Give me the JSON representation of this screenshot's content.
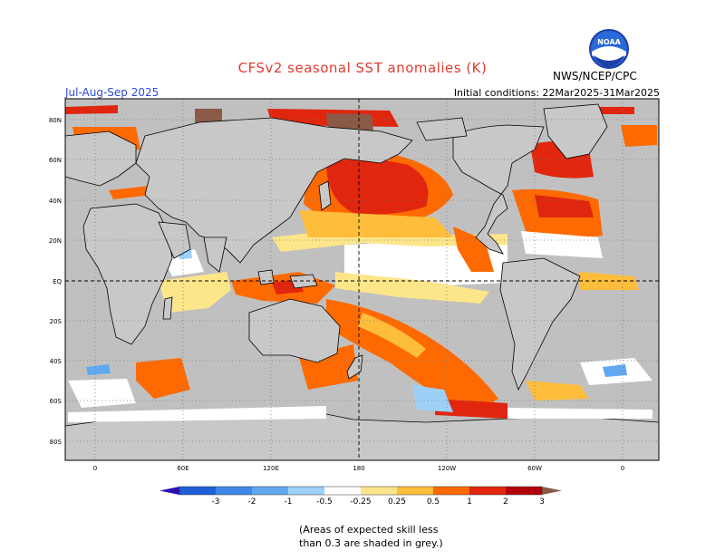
{
  "header": {
    "title": "CFSv2 seasonal SST anomalies (K)",
    "organization": "NWS/NCEP/CPC",
    "logo_text": "NOAA",
    "season": "Jul-Aug-Sep 2025",
    "initial_conditions": "Initial conditions: 22Mar2025-31Mar2025"
  },
  "map": {
    "lat_labels": [
      "80N",
      "60N",
      "40N",
      "20N",
      "EQ",
      "20S",
      "40S",
      "60S",
      "80S"
    ],
    "lon_labels": [
      "0",
      "60E",
      "120E",
      "180",
      "120W",
      "60W",
      "0"
    ],
    "land_color": "#c8c8c8",
    "unskilled_color": "#c0c0c0",
    "ocean_neutral_color": "#ffffff"
  },
  "legend": {
    "labels": [
      "-3",
      "-2",
      "-1",
      "-0.5",
      "-0.25",
      "0.25",
      "0.5",
      "1",
      "2",
      "3"
    ],
    "colors": [
      "#2b0fb4",
      "#1e5ed6",
      "#3f88e6",
      "#60a8f0",
      "#9dd0f8",
      "#ffffff",
      "#fde58a",
      "#ffbd3c",
      "#ff6a00",
      "#e0260e",
      "#b3000b",
      "#8a5a47"
    ]
  },
  "note": {
    "line1": "(Areas of expected skill less",
    "line2": "than 0.3 are shaded in grey.)"
  }
}
